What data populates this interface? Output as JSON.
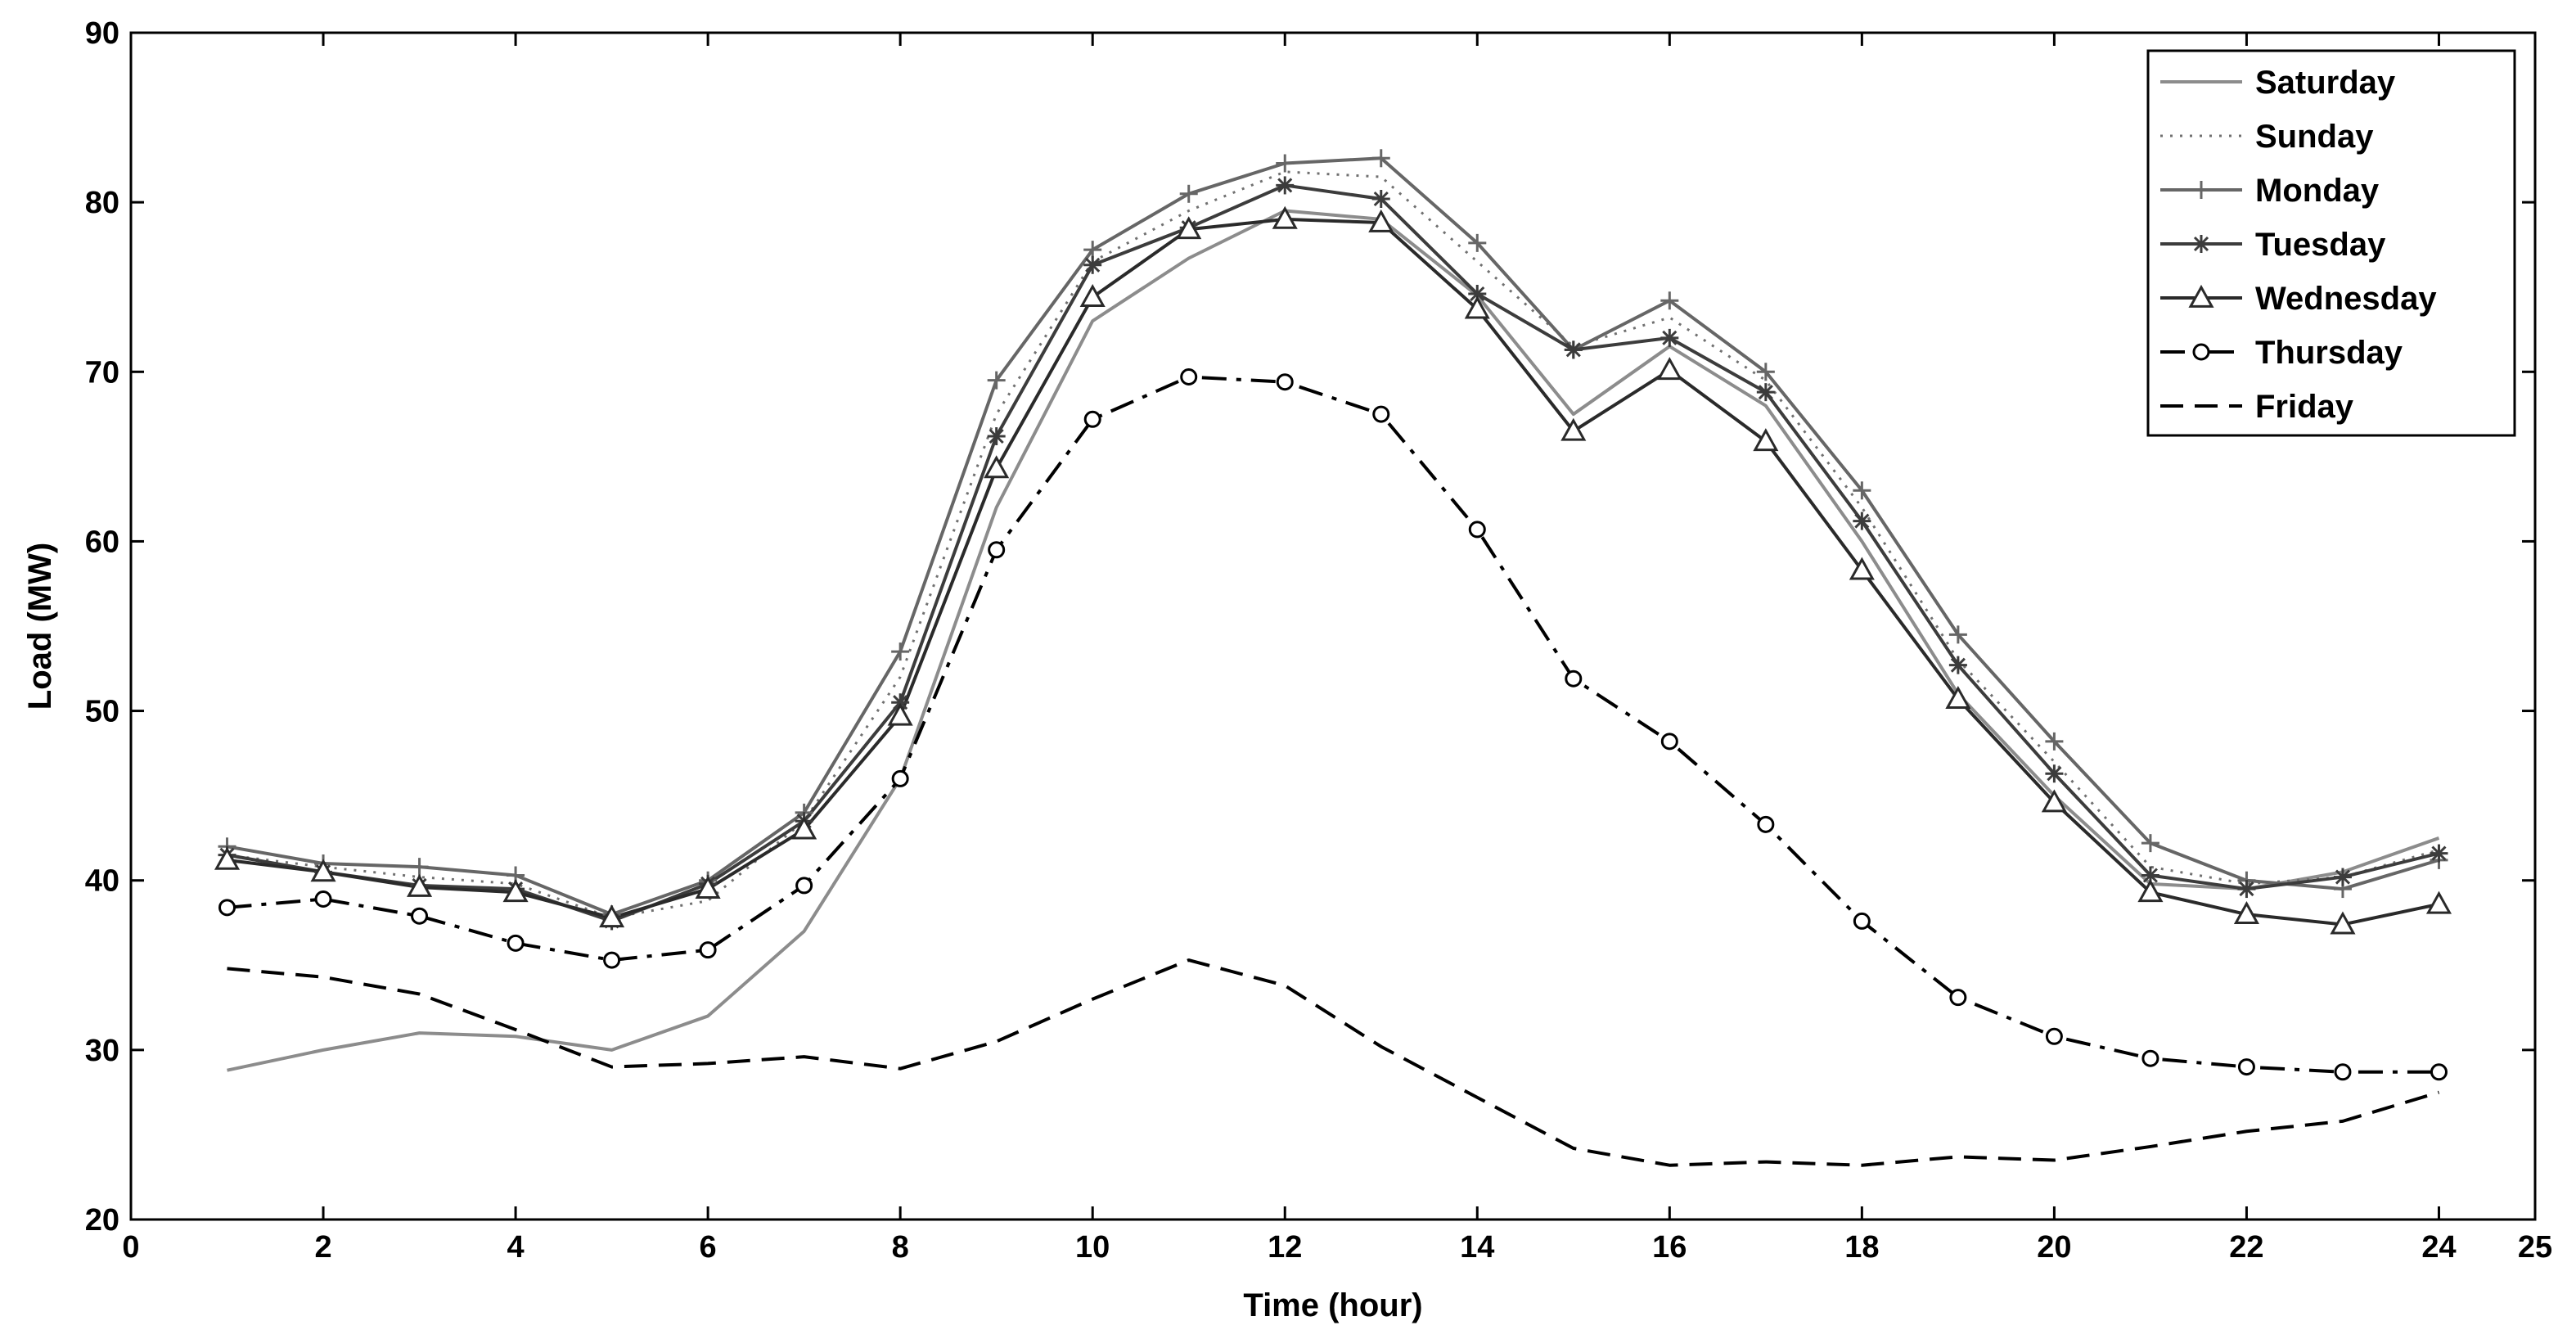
{
  "chart_data": {
    "type": "line",
    "title": "",
    "xlabel": "Time (hour)",
    "ylabel": "Load (MW)",
    "xlim": [
      0,
      25
    ],
    "ylim": [
      20,
      90
    ],
    "xticks": [
      0,
      2,
      4,
      6,
      8,
      10,
      12,
      14,
      16,
      18,
      20,
      22,
      24,
      25
    ],
    "yticks": [
      20,
      30,
      40,
      50,
      60,
      70,
      80,
      90
    ],
    "grid": false,
    "legend_position": "top-right",
    "x": [
      1,
      2,
      3,
      4,
      5,
      6,
      7,
      8,
      9,
      10,
      11,
      12,
      13,
      14,
      15,
      16,
      17,
      18,
      19,
      20,
      21,
      22,
      23,
      24
    ],
    "series": [
      {
        "name": "Saturday",
        "color": "#8c8c8c",
        "dash": "solid",
        "marker": "none",
        "values": [
          28.8,
          30.0,
          31.0,
          30.8,
          30.0,
          32.0,
          37.0,
          46.0,
          62.0,
          73.0,
          76.7,
          79.5,
          79.0,
          74.5,
          67.5,
          71.5,
          68.0,
          60.0,
          51.0,
          45.0,
          39.8,
          39.5,
          40.5,
          42.5
        ]
      },
      {
        "name": "Sunday",
        "color": "#707070",
        "dash": "dotted",
        "marker": "none",
        "values": [
          41.5,
          40.8,
          40.2,
          39.8,
          37.8,
          38.8,
          43.5,
          52.0,
          67.5,
          76.5,
          79.5,
          81.8,
          81.5,
          76.5,
          71.5,
          73.2,
          69.5,
          62.0,
          53.0,
          47.0,
          40.8,
          39.8,
          40.2,
          41.8
        ]
      },
      {
        "name": "Monday",
        "color": "#666666",
        "dash": "solid",
        "marker": "plus",
        "values": [
          42.0,
          41.0,
          40.8,
          40.3,
          38.0,
          40.0,
          44.0,
          53.5,
          69.5,
          77.2,
          80.5,
          82.3,
          82.6,
          77.6,
          71.3,
          74.2,
          70.0,
          63.0,
          54.5,
          48.2,
          42.2,
          40.0,
          39.5,
          41.2
        ]
      },
      {
        "name": "Tuesday",
        "color": "#3c3c3c",
        "dash": "solid",
        "marker": "star",
        "values": [
          41.5,
          40.5,
          39.7,
          39.5,
          37.6,
          39.8,
          43.5,
          50.5,
          66.2,
          76.3,
          78.5,
          81.0,
          80.2,
          74.6,
          71.3,
          72.0,
          68.8,
          61.2,
          52.7,
          46.3,
          40.3,
          39.5,
          40.2,
          41.6
        ]
      },
      {
        "name": "Wednesday",
        "color": "#2a2a2a",
        "dash": "solid",
        "marker": "triangle",
        "values": [
          41.2,
          40.5,
          39.6,
          39.3,
          37.8,
          39.5,
          43.0,
          49.7,
          64.3,
          74.4,
          78.4,
          79.0,
          78.8,
          73.7,
          66.5,
          70.1,
          65.9,
          58.3,
          50.7,
          44.6,
          39.3,
          38.0,
          37.4,
          38.6
        ]
      },
      {
        "name": "Thursday",
        "color": "#000000",
        "dash": "dashdot",
        "marker": "circle",
        "values": [
          38.4,
          38.9,
          37.9,
          36.3,
          35.3,
          35.9,
          39.7,
          46.0,
          59.5,
          67.2,
          69.7,
          69.4,
          67.5,
          60.7,
          51.9,
          48.2,
          43.3,
          37.6,
          33.1,
          30.8,
          29.5,
          29.0,
          28.7,
          28.7
        ]
      },
      {
        "name": "Friday",
        "color": "#000000",
        "dash": "dashed",
        "marker": "none",
        "values": [
          34.8,
          34.3,
          33.3,
          31.2,
          29.0,
          29.2,
          29.6,
          28.9,
          30.5,
          33.0,
          35.3,
          33.8,
          30.2,
          27.2,
          24.2,
          23.2,
          23.4,
          23.2,
          23.7,
          23.5,
          24.3,
          25.2,
          25.8,
          27.5
        ]
      }
    ]
  }
}
